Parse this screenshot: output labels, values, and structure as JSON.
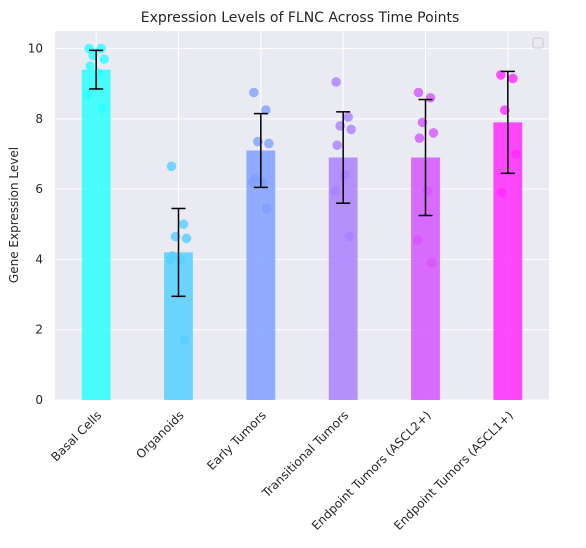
{
  "chart_data": {
    "type": "bar",
    "title": "Expression Levels of FLNC Across Time Points",
    "xlabel": "",
    "ylabel": "Gene Expression Level",
    "ylim": [
      0,
      10.5
    ],
    "yticks": [
      0,
      2,
      4,
      6,
      8,
      10
    ],
    "ytick_labels": [
      "0",
      "2",
      "4",
      "6",
      "8",
      "10"
    ],
    "grid": true,
    "legend": "top-right (empty)",
    "categories": [
      "Basal Cells",
      "Organoids",
      "Early Tumors",
      "Transitional Tumors",
      "Endpoint Tumors (ASCL2+)",
      "Endpoint Tumors (ASCL1+)"
    ],
    "values": [
      9.4,
      4.2,
      7.1,
      6.9,
      6.9,
      7.9
    ],
    "errors": [
      0.55,
      1.25,
      1.05,
      1.3,
      1.65,
      1.45
    ],
    "colors": [
      "#2affff",
      "#55d0ff",
      "#80a0ff",
      "#aa80ff",
      "#d455ff",
      "#ff2aff"
    ],
    "points": [
      [
        10.0,
        10.0,
        9.8,
        9.7,
        9.5,
        9.3,
        8.7,
        8.3
      ],
      [
        6.65,
        5.0,
        4.65,
        4.6,
        4.1,
        4.0,
        4.0,
        1.7
      ],
      [
        8.75,
        8.25,
        7.35,
        7.3,
        6.3,
        6.2,
        6.2,
        5.45
      ],
      [
        9.05,
        8.05,
        7.8,
        7.7,
        7.25,
        6.4,
        5.95,
        4.65
      ],
      [
        8.75,
        8.6,
        7.9,
        7.6,
        7.45,
        5.95,
        4.55,
        3.9
      ],
      [
        9.25,
        9.15,
        8.25,
        7.0,
        5.9
      ]
    ]
  }
}
